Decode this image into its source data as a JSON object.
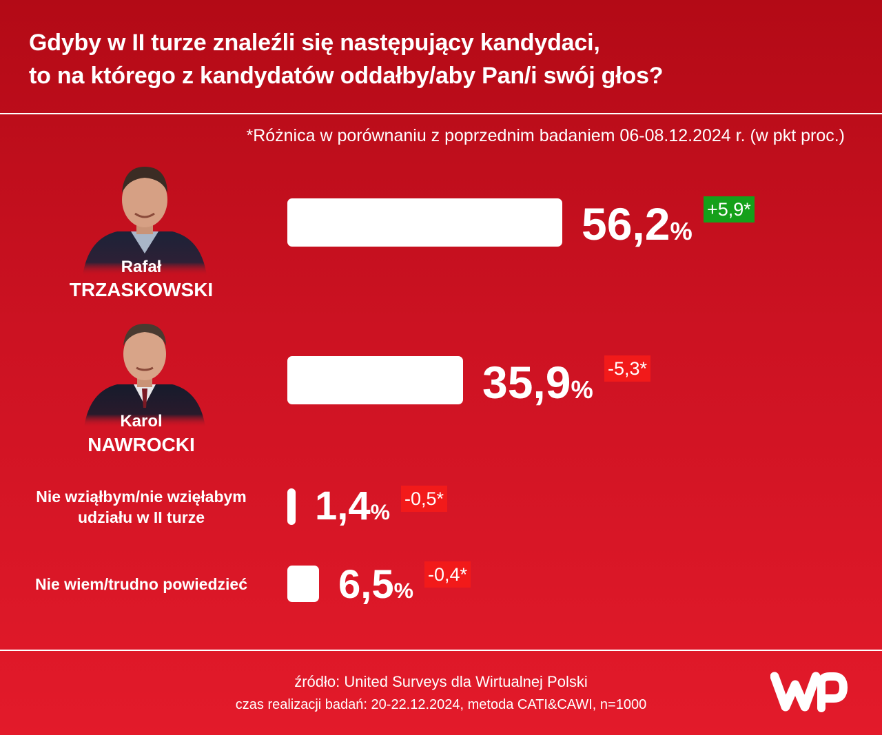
{
  "header": {
    "title_line1": "Gdyby w II turze znaleźli się następujący kandydaci,",
    "title_line2": "to na którego z kandydatów oddałby/aby Pan/i swój głos?"
  },
  "note": "*Różnica w porównaniu z poprzednim badaniem 06-08.12.2024 r. (w pkt proc.)",
  "chart_data": {
    "type": "bar",
    "orientation": "horizontal",
    "unit": "%",
    "categories": [
      "Rafał TRZASKOWSKI",
      "Karol NAWROCKI",
      "Nie wziąłbym/nie wzięłabym udziału w II turze",
      "Nie wiem/trudno powiedzieć"
    ],
    "values": [
      56.2,
      35.9,
      1.4,
      6.5
    ],
    "diffs": [
      5.9,
      -5.3,
      -0.5,
      -0.4
    ],
    "series": [
      {
        "values": [
          56.2,
          35.9,
          1.4,
          6.5
        ],
        "value_labels": [
          "56,2",
          "35,9",
          "1,4",
          "6,5"
        ],
        "diff_labels": [
          "+5,9*",
          "-5,3*",
          "-0,5*",
          "-0,4*"
        ]
      }
    ],
    "percent_sign": "%"
  },
  "candidates": [
    {
      "first_name": "Rafał",
      "last_name": "TRZASKOWSKI"
    },
    {
      "first_name": "Karol",
      "last_name": "NAWROCKI"
    }
  ],
  "options": [
    {
      "line1": "Nie wziąłbym/nie wzięłabym",
      "line2": "udziału w II turze"
    },
    {
      "line1": "Nie wiem/trudno powiedzieć"
    }
  ],
  "colors": {
    "positive": "#15a01a",
    "negative": "#f21a1a",
    "bar": "#ffffff",
    "background_top": "#b30a16",
    "background_bottom": "#e31a2a"
  },
  "footer": {
    "source": "źródło: United Surveys dla Wirtualnej Polski",
    "method": "czas realizacji badań: 20-22.12.2024, metoda CATI&CAWI, n=1000"
  },
  "logo": {
    "name": "wp-logo"
  }
}
